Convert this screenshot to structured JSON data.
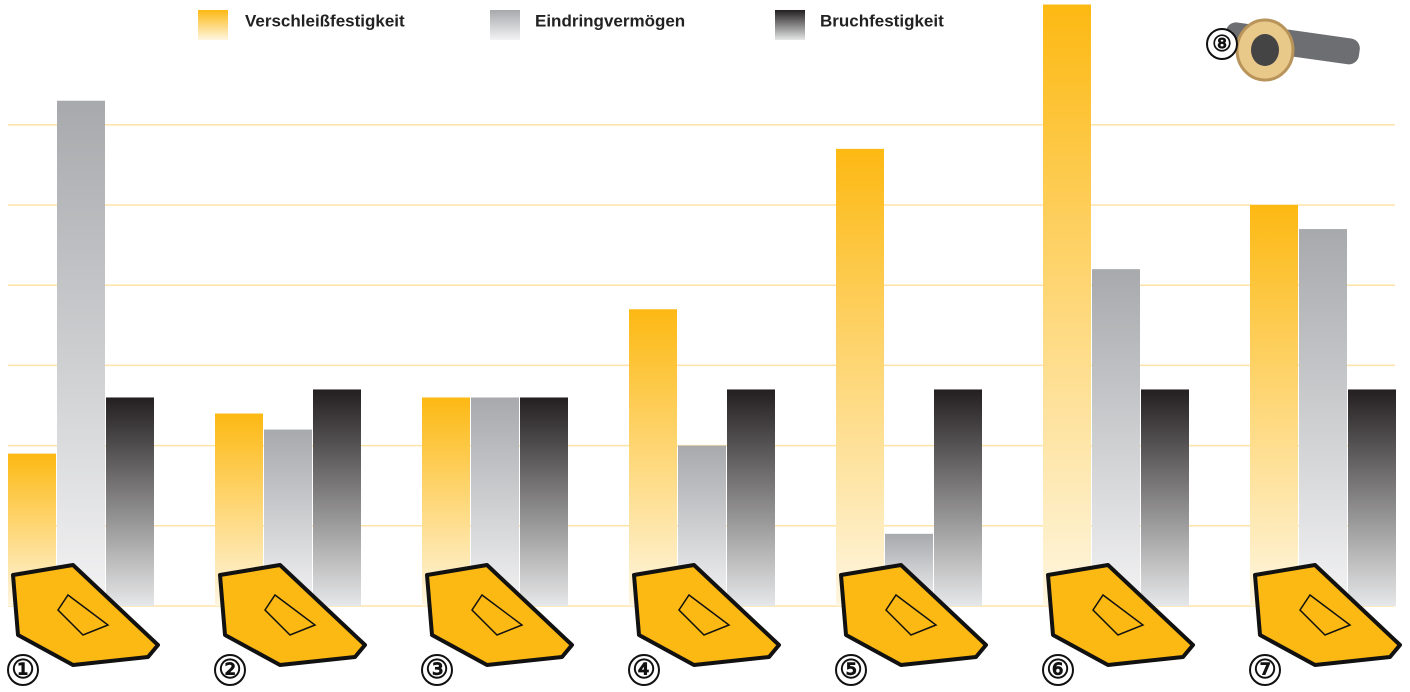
{
  "chart_data": {
    "type": "bar",
    "categories": [
      "①",
      "②",
      "③",
      "④",
      "⑤",
      "⑥",
      "⑦"
    ],
    "series": [
      {
        "name": "Verschleißfestigkeit",
        "color": "#fdb913",
        "values": [
          1.9,
          2.4,
          2.6,
          3.7,
          5.7,
          7.5,
          5.0
        ]
      },
      {
        "name": "Eindringvermögen",
        "color": "#a7a9ac",
        "values": [
          6.3,
          2.2,
          2.6,
          2.0,
          0.9,
          4.2,
          4.7
        ]
      },
      {
        "name": "Bruchfestigkeit",
        "color": "#231f20",
        "values": [
          2.6,
          2.7,
          2.6,
          2.7,
          2.7,
          2.7,
          2.7
        ]
      }
    ],
    "ylim": [
      0,
      7.5
    ],
    "yticks": [
      0,
      1,
      2,
      3,
      4,
      5,
      6
    ],
    "grid": true,
    "annotation": "⑧"
  }
}
